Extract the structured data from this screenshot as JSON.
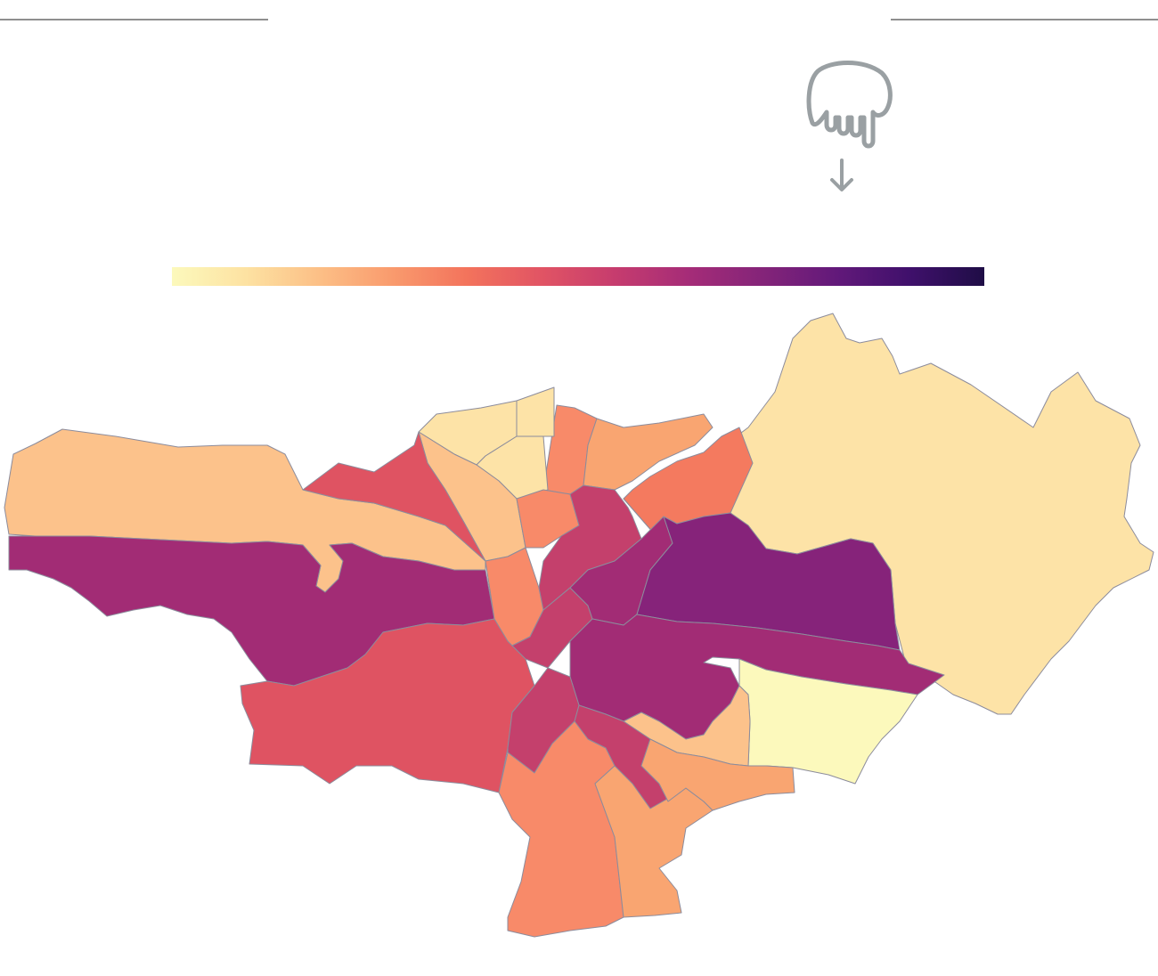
{
  "hint": {
    "icon": "pointing-hand-icon",
    "arrow_icon": "arrow-down-icon",
    "stroke_color": "#9aa0a3"
  },
  "color_scale": {
    "stops": [
      "#fcf9bc",
      "#fde2a2",
      "#fcbf86",
      "#f99a6d",
      "#f3735c",
      "#e15464",
      "#c63c6e",
      "#a52c78",
      "#842479",
      "#62197a",
      "#3f106b",
      "#1f0d46"
    ]
  },
  "palette": {
    "level_0": "#fcf9bc",
    "level_1": "#fde3a7",
    "level_2": "#fcc28b",
    "level_3": "#f9a571",
    "level_4": "#f88a69",
    "level_5": "#f47a5f",
    "level_6": "#df5362",
    "level_7": "#c4406c",
    "level_8": "#a22c75",
    "level_9": "#86237a"
  },
  "districts": [
    {
      "name": "east-large",
      "level": 1
    },
    {
      "name": "north-ridge",
      "level": 1
    },
    {
      "name": "north-small-1",
      "level": 1
    },
    {
      "name": "north-small-2",
      "level": 1
    },
    {
      "name": "north-small-3",
      "level": 1
    },
    {
      "name": "west-band",
      "level": 2
    },
    {
      "name": "north-diag",
      "level": 2
    },
    {
      "name": "west-lower",
      "level": 8
    },
    {
      "name": "northwest-red",
      "level": 6
    },
    {
      "name": "southwest-red",
      "level": 6
    },
    {
      "name": "north-orange-1",
      "level": 4
    },
    {
      "name": "north-orange-2",
      "level": 3
    },
    {
      "name": "northeast-strip",
      "level": 5
    },
    {
      "name": "center-orange",
      "level": 4
    },
    {
      "name": "center-pink",
      "level": 7
    },
    {
      "name": "center-magenta",
      "level": 7
    },
    {
      "name": "center-purple-1",
      "level": 8
    },
    {
      "name": "east-purple",
      "level": 9
    },
    {
      "name": "east-purple-2",
      "level": 9
    },
    {
      "name": "southeast-magenta",
      "level": 8
    },
    {
      "name": "southeast-yellow",
      "level": 0
    },
    {
      "name": "southeast-light",
      "level": 2
    },
    {
      "name": "south-center-pink",
      "level": 7
    },
    {
      "name": "south-pink-2",
      "level": 7
    },
    {
      "name": "south-salmon",
      "level": 4
    },
    {
      "name": "south-peach",
      "level": 3
    },
    {
      "name": "south-orange-east",
      "level": 3
    },
    {
      "name": "center-left-salmon",
      "level": 4
    }
  ]
}
